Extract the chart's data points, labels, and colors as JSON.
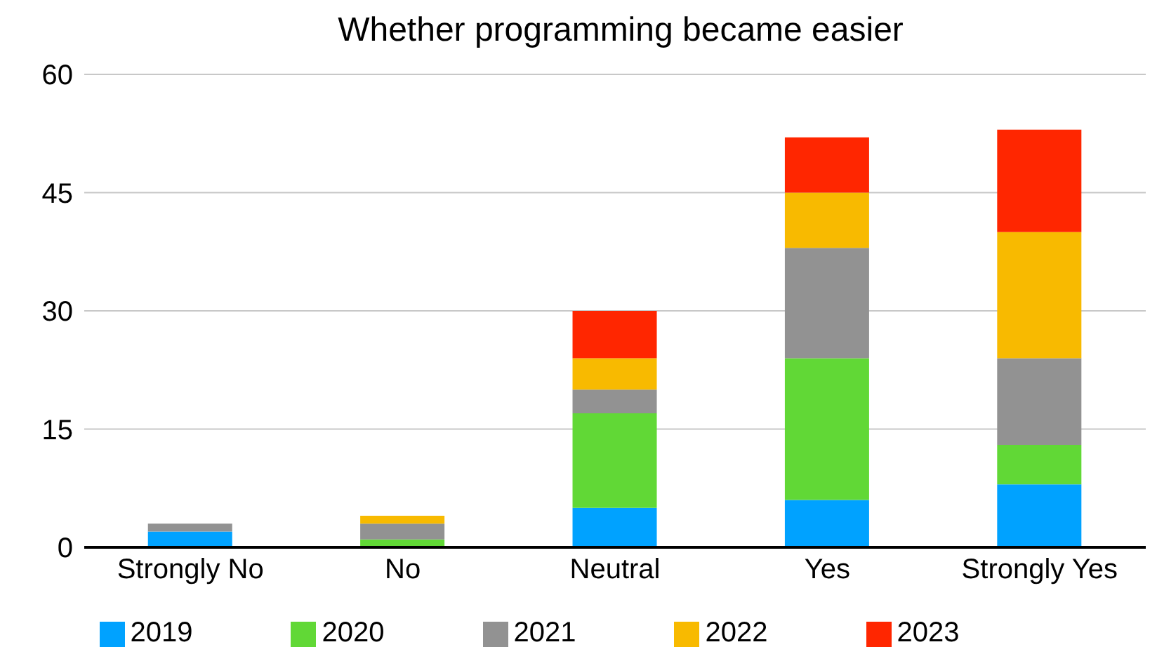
{
  "chart_data": {
    "type": "bar",
    "title": "Whether programming became easier",
    "categories": [
      "Strongly No",
      "No",
      "Neutral",
      "Yes",
      "Strongly Yes"
    ],
    "stacked": true,
    "series": [
      {
        "name": "2019",
        "color": "#00a2ff",
        "values": [
          2,
          0,
          5,
          6,
          8
        ]
      },
      {
        "name": "2020",
        "color": "#61d836",
        "values": [
          0,
          1,
          12,
          18,
          5
        ]
      },
      {
        "name": "2021",
        "color": "#929292",
        "values": [
          1,
          2,
          3,
          14,
          11
        ]
      },
      {
        "name": "2022",
        "color": "#f8ba00",
        "values": [
          0,
          1,
          4,
          7,
          16
        ]
      },
      {
        "name": "2023",
        "color": "#ff2600",
        "values": [
          0,
          0,
          6,
          7,
          13
        ]
      }
    ],
    "ylim": [
      0,
      60
    ],
    "yticks": [
      0,
      15,
      30,
      45,
      60
    ],
    "grid": "y",
    "legend": "bottom"
  }
}
